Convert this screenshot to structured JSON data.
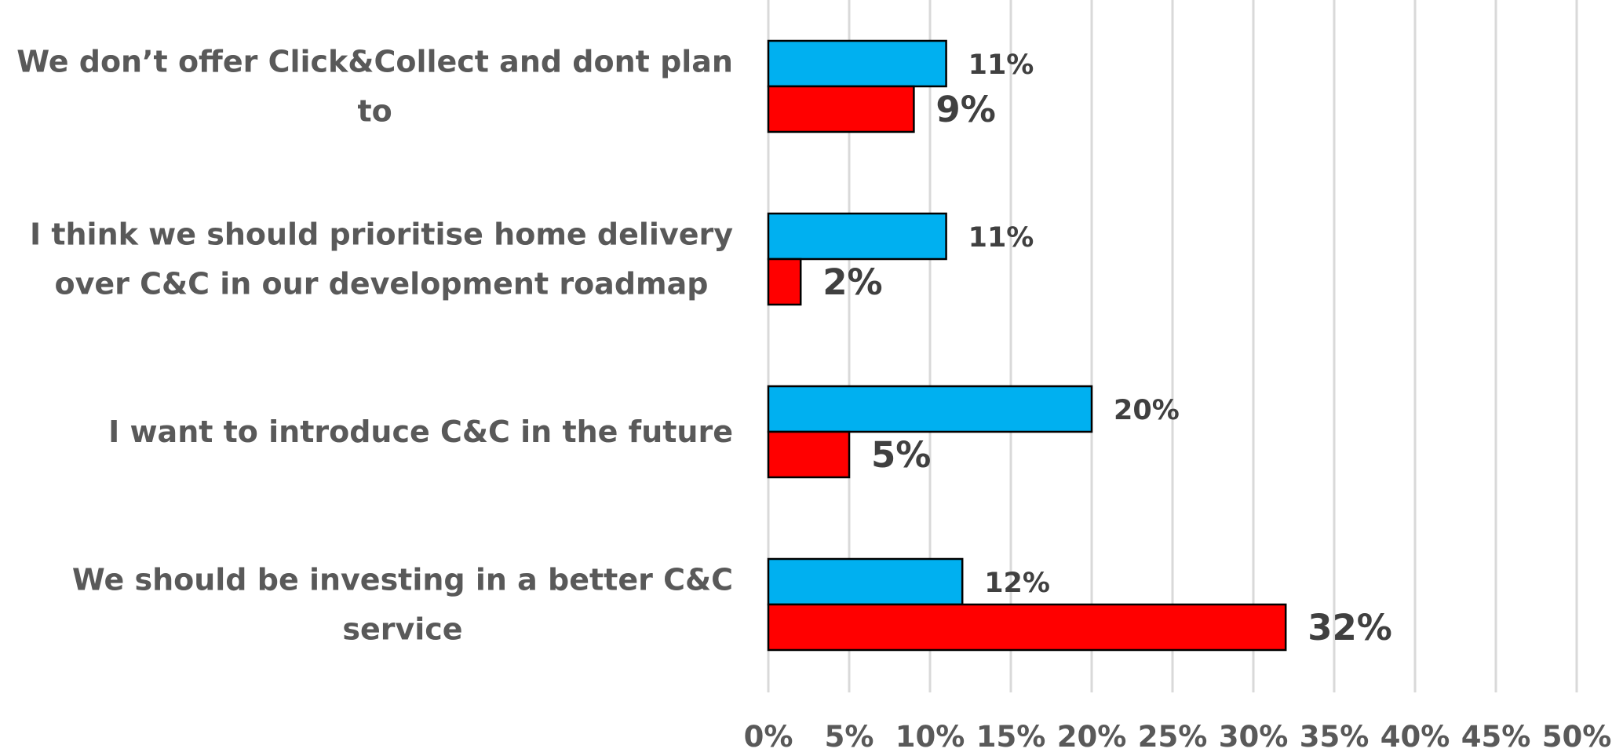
{
  "chart_data": {
    "type": "bar",
    "orientation": "horizontal",
    "categories": [
      [
        "We don’t offer Click&Collect and dont plan",
        "to"
      ],
      [
        "I think we should prioritise home delivery",
        "over C&C in our development roadmap"
      ],
      [
        "I want to introduce C&C in the future"
      ],
      [
        "We should be investing in a better C&C",
        "service"
      ]
    ],
    "series": [
      {
        "values": [
          11,
          11,
          20,
          12
        ],
        "labels": [
          "11%",
          "11%",
          "20%",
          "12%"
        ],
        "color": "#00B0F0"
      },
      {
        "values": [
          9,
          2,
          5,
          32
        ],
        "labels": [
          "9%",
          "2%",
          "5%",
          "32%"
        ],
        "color": "#FF0000"
      }
    ],
    "xlim": [
      0,
      50
    ],
    "xticks": [
      "0%",
      "5%",
      "10%",
      "15%",
      "20%",
      "25%",
      "30%",
      "35%",
      "40%",
      "45%",
      "50%"
    ],
    "grid": true,
    "legend": "none",
    "title": "",
    "xlabel": "",
    "ylabel": ""
  }
}
